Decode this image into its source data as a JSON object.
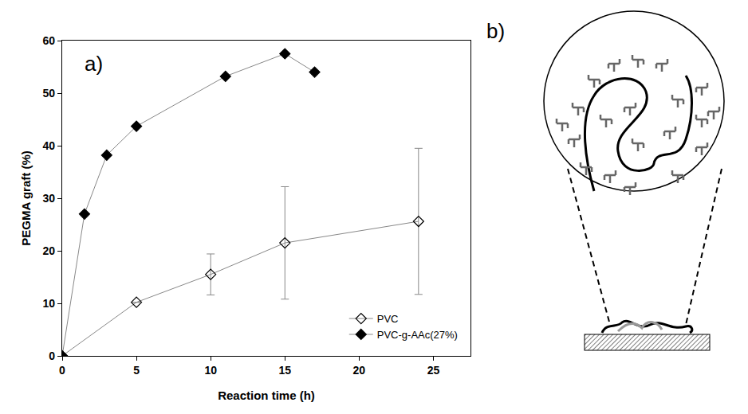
{
  "chart_data": {
    "type": "line",
    "panel_label": "a)",
    "xlabel": "Reaction time (h)",
    "ylabel": "PEGMA graft (%)",
    "xlim": [
      0,
      27.5
    ],
    "xticks": [
      0,
      5,
      10,
      15,
      20,
      25
    ],
    "ylim": [
      0,
      60
    ],
    "yticks": [
      0,
      10,
      20,
      30,
      40,
      50,
      60
    ],
    "grid": false,
    "legend": "lower right",
    "series": [
      {
        "name": "PVC",
        "x": [
          0,
          5,
          10,
          15,
          24
        ],
        "values": [
          0,
          10.2,
          15.5,
          21.5,
          25.6
        ],
        "errors": [
          0,
          0,
          3.9,
          10.7,
          13.9
        ],
        "color": "#000000",
        "marker": "diamond-open"
      },
      {
        "name": "PVC-g-AAc(27%)",
        "x": [
          0,
          1.5,
          3,
          5,
          11,
          15,
          17
        ],
        "values": [
          0,
          27,
          38.2,
          43.7,
          53.2,
          57.5,
          54
        ],
        "color": "#000000",
        "marker": "diamond"
      }
    ]
  },
  "diagram": {
    "panel_label": "b)"
  }
}
